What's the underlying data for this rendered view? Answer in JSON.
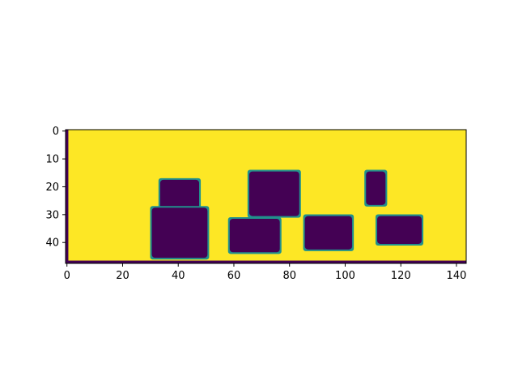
{
  "chart_data": {
    "type": "heatmap",
    "title": "",
    "xlabel": "",
    "ylabel": "",
    "colormap": "viridis",
    "background_color": "#fde725",
    "foreground_color": "#440154",
    "edge_color": "#21918c",
    "grid_size": {
      "cols": 144,
      "rows": 48
    },
    "xlim": [
      0,
      144
    ],
    "ylim": [
      48,
      0
    ],
    "grid": false,
    "x_ticks": [
      "0",
      "20",
      "40",
      "60",
      "80",
      "100",
      "120",
      "140"
    ],
    "y_ticks": [
      "0",
      "10",
      "20",
      "30",
      "40"
    ],
    "dark_regions": [
      {
        "x0": 34,
        "x1": 48,
        "y0": 18,
        "y1": 29
      },
      {
        "x0": 31,
        "x1": 51,
        "y0": 28,
        "y1": 46
      },
      {
        "x0": 66,
        "x1": 84,
        "y0": 15,
        "y1": 31
      },
      {
        "x0": 59,
        "x1": 77,
        "y0": 32,
        "y1": 44
      },
      {
        "x0": 86,
        "x1": 103,
        "y0": 31,
        "y1": 43
      },
      {
        "x0": 108,
        "x1": 115,
        "y0": 15,
        "y1": 27
      },
      {
        "x0": 112,
        "x1": 128,
        "y0": 31,
        "y1": 41
      }
    ],
    "edge_columns": [
      0
    ],
    "edge_rows": [
      47
    ]
  }
}
